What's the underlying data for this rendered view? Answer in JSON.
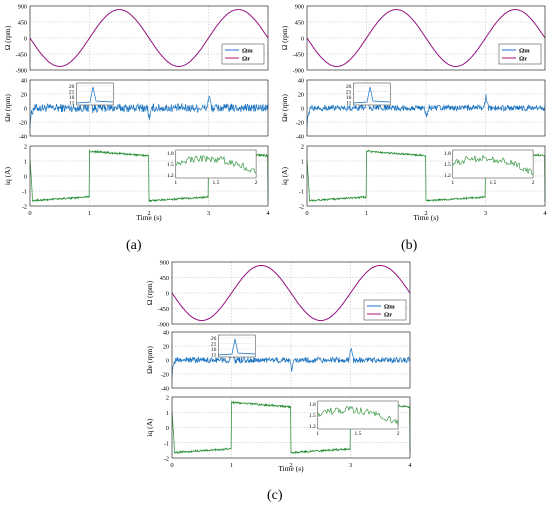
{
  "chart_data": [
    {
      "type": "line",
      "panel_label": "(a)",
      "time_axis": {
        "label": "Time (s)",
        "ticks": [
          0,
          1,
          2,
          3,
          4
        ]
      },
      "subplots": [
        {
          "ylabel": "Ω (rpm)",
          "ylim": [
            -900,
            900
          ],
          "yticks": [
            -900,
            -450,
            0,
            450,
            900
          ],
          "series": [
            {
              "name": "Ωm",
              "color": "#1f6fd6",
              "shape": "sine",
              "amplitude": 800,
              "period_s": 2
            },
            {
              "name": "Ωr",
              "color": "#b0107a",
              "shape": "sine",
              "amplitude": 800,
              "period_s": 2
            }
          ],
          "legend": "top-right"
        },
        {
          "ylabel": "Ωe (rpm)",
          "ylim": [
            -40,
            40
          ],
          "yticks": [
            -40,
            -20,
            0,
            20,
            40
          ],
          "series": [
            {
              "color": "#1a73c0",
              "shape": "noise",
              "noise_amp": 6,
              "spikes": [
                [
                  1.0,
                  24
                ],
                [
                  2.0,
                  -20
                ],
                [
                  3.0,
                  20
                ]
              ]
            }
          ],
          "inset": {
            "yticks": [
              11,
              16,
              21,
              26
            ],
            "peak": 26
          }
        },
        {
          "ylabel": "iq (A)",
          "ylim": [
            -2,
            2
          ],
          "yticks": [
            -2,
            -1,
            0,
            1,
            2
          ],
          "series": [
            {
              "color": "#1e8a2a",
              "shape": "current",
              "high": 1.65,
              "low": -1.65
            }
          ],
          "inset": {
            "xticks": [
              "1",
              "1.5",
              "2"
            ],
            "yticks": [
              "1.2",
              "1.5",
              "1.8"
            ]
          }
        }
      ]
    },
    {
      "type": "line",
      "panel_label": "(b)",
      "time_axis": {
        "label": "Time (s)",
        "ticks": [
          0,
          1,
          2,
          3,
          4
        ]
      },
      "subplots": [
        {
          "ylabel": "Ω (rpm)",
          "ylim": [
            -900,
            900
          ],
          "yticks": [
            -900,
            -450,
            0,
            450,
            900
          ],
          "series": [
            {
              "name": "Ωm",
              "color": "#1f6fd6",
              "shape": "sine",
              "amplitude": 800,
              "period_s": 2
            },
            {
              "name": "Ωr",
              "color": "#b0107a",
              "shape": "sine",
              "amplitude": 800,
              "period_s": 2
            }
          ],
          "legend": "top-right"
        },
        {
          "ylabel": "Ωe (rpm)",
          "ylim": [
            -40,
            40
          ],
          "yticks": [
            -40,
            -20,
            0,
            20,
            40
          ],
          "series": [
            {
              "color": "#1a73c0",
              "shape": "noise",
              "noise_amp": 4,
              "spikes": [
                [
                  1.0,
                  20
                ],
                [
                  2.0,
                  -14
                ],
                [
                  3.0,
                  18
                ]
              ]
            }
          ],
          "inset": {
            "yticks": [
              11,
              16,
              21,
              26
            ],
            "peak": 24
          }
        },
        {
          "ylabel": "iq (A)",
          "ylim": [
            -2,
            2
          ],
          "yticks": [
            -2,
            -1,
            0,
            1,
            2
          ],
          "series": [
            {
              "color": "#1e8a2a",
              "shape": "current",
              "high": 1.65,
              "low": -1.65
            }
          ],
          "inset": {
            "xticks": [
              "1",
              "1.5",
              "2"
            ],
            "yticks": [
              "1.2",
              "1.5",
              "1.8"
            ]
          }
        }
      ]
    },
    {
      "type": "line",
      "panel_label": "(c)",
      "time_axis": {
        "label": "Time (s)",
        "ticks": [
          0,
          1,
          2,
          3,
          4
        ]
      },
      "subplots": [
        {
          "ylabel": "Ω (rpm)",
          "ylim": [
            -900,
            900
          ],
          "yticks": [
            -900,
            -450,
            0,
            450,
            900
          ],
          "series": [
            {
              "name": "Ωm",
              "color": "#1f6fd6",
              "shape": "sine",
              "amplitude": 800,
              "period_s": 2
            },
            {
              "name": "Ωr",
              "color": "#b0107a",
              "shape": "sine",
              "amplitude": 800,
              "period_s": 2
            }
          ],
          "legend": "top-right"
        },
        {
          "ylabel": "Ωe (rpm)",
          "ylim": [
            -40,
            40
          ],
          "yticks": [
            -40,
            -20,
            0,
            20,
            40
          ],
          "series": [
            {
              "color": "#1a73c0",
              "shape": "noise",
              "noise_amp": 4,
              "spikes": [
                [
                  1.0,
                  18
                ],
                [
                  2.0,
                  -16
                ],
                [
                  3.0,
                  18
                ]
              ]
            }
          ],
          "inset": {
            "yticks": [
              11,
              16,
              21,
              26
            ],
            "peak": 23
          }
        },
        {
          "ylabel": "iq (A)",
          "ylim": [
            -2,
            2
          ],
          "yticks": [
            -2,
            -1,
            0,
            1,
            2
          ],
          "series": [
            {
              "color": "#1e8a2a",
              "shape": "current",
              "high": 1.65,
              "low": -1.65
            }
          ],
          "inset": {
            "xticks": [
              "1",
              "1.5",
              "2"
            ],
            "yticks": [
              "1.2",
              "1.5",
              "1.8"
            ]
          }
        }
      ]
    }
  ]
}
